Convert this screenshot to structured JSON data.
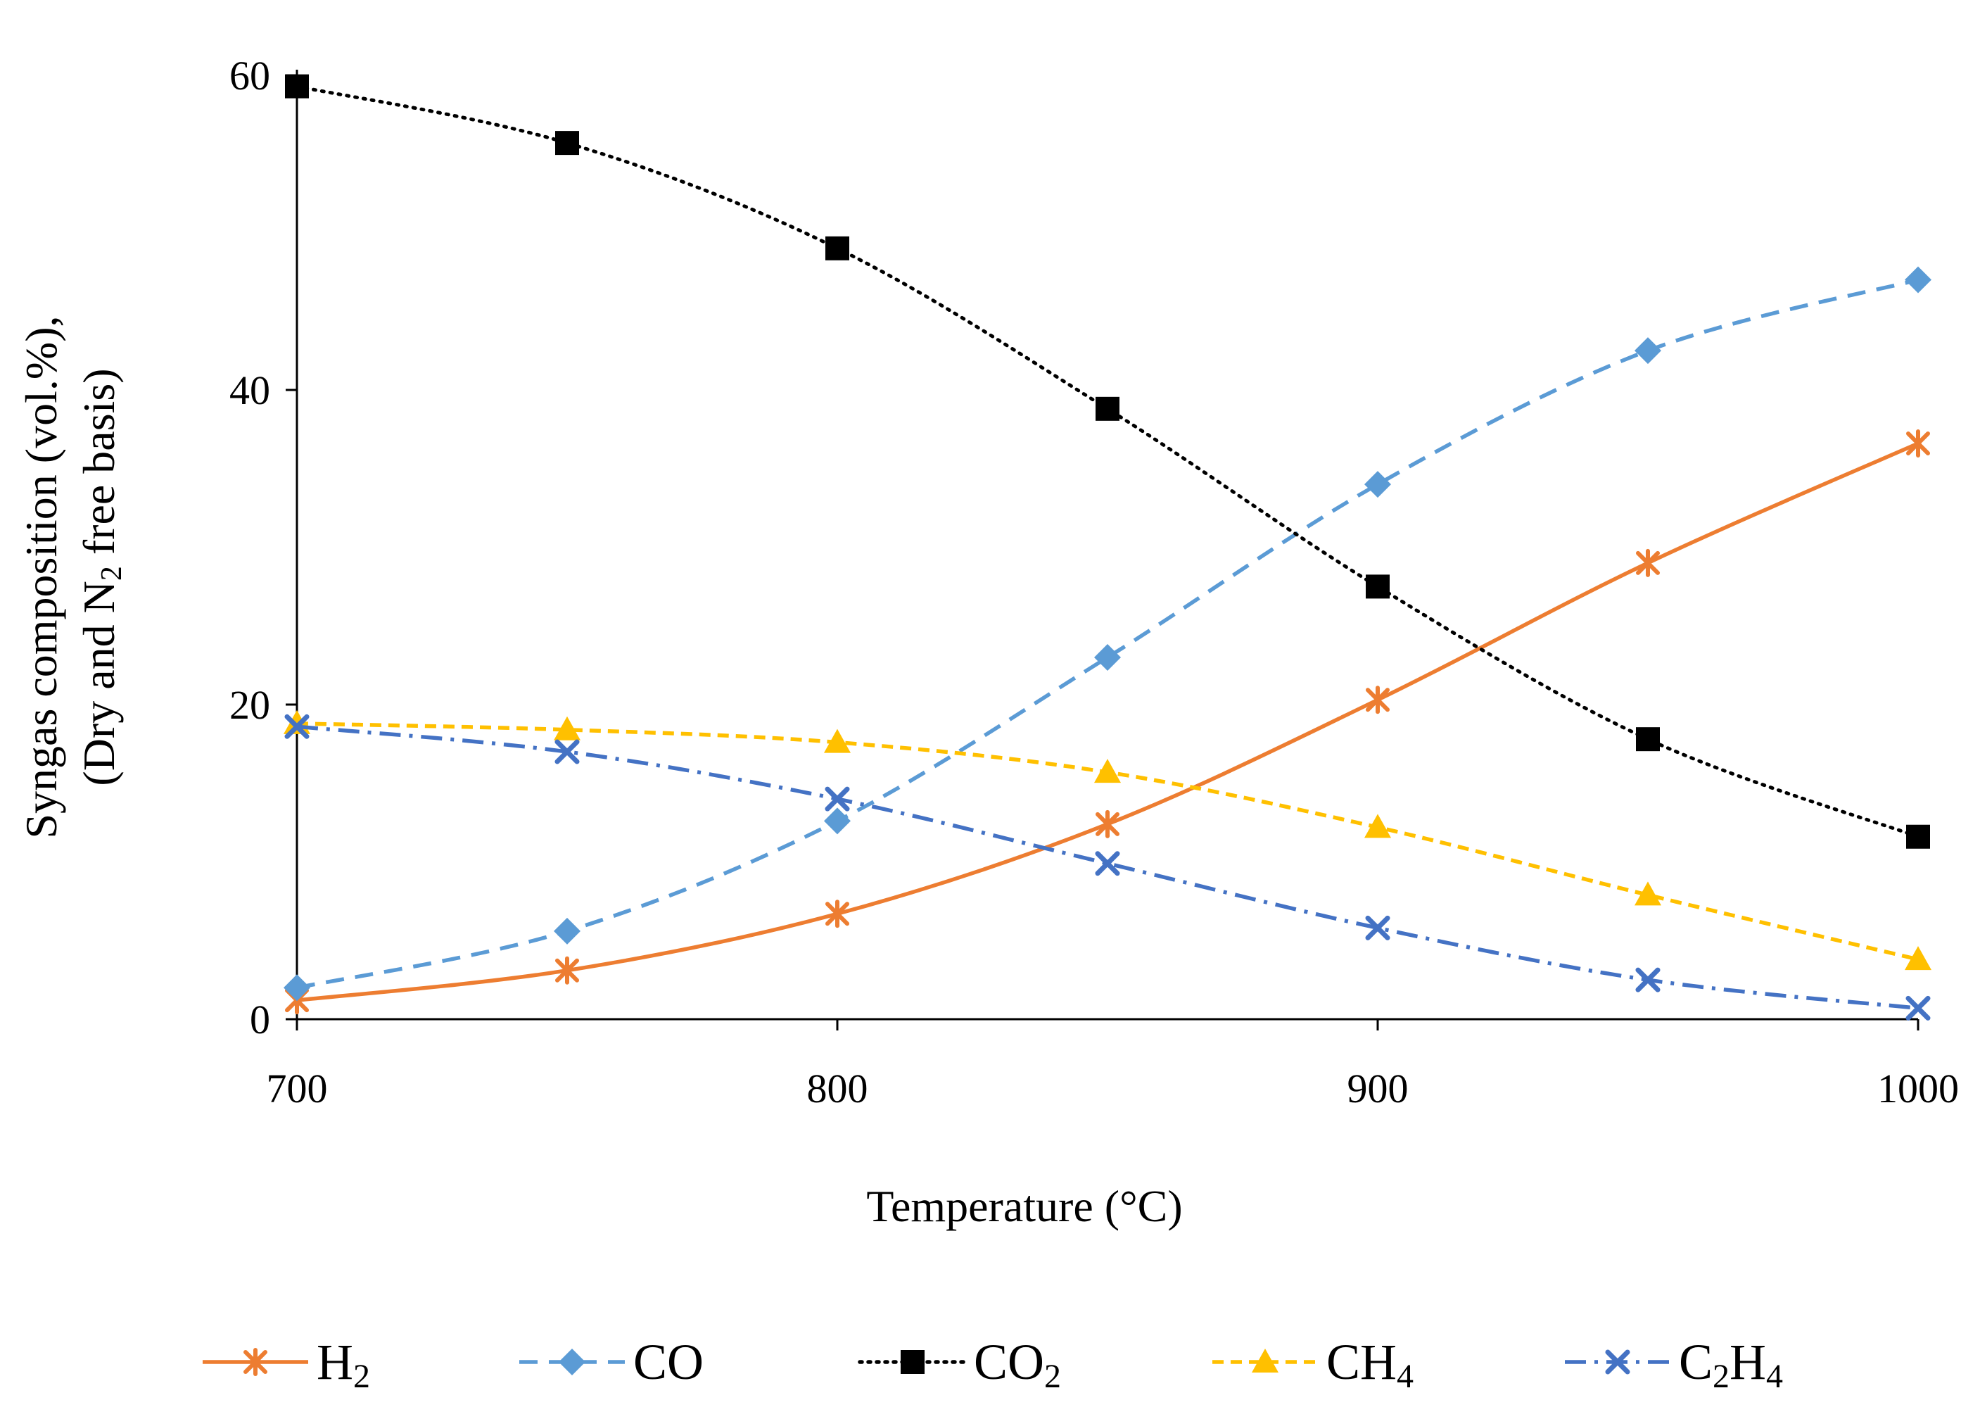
{
  "chart_data": {
    "type": "line",
    "title": "",
    "xlabel": "Temperature (°C)",
    "ylabel_line1": "Syngas composition (vol.%),",
    "ylabel_line2_prefix": "(Dry and N",
    "ylabel_line2_sub": "2",
    "ylabel_line2_suffix": " free basis)",
    "xlim": [
      700,
      1000
    ],
    "ylim": [
      0,
      60
    ],
    "xticks": [
      700,
      800,
      900,
      1000
    ],
    "yticks": [
      0,
      20,
      40,
      60
    ],
    "x": [
      700,
      750,
      800,
      850,
      900,
      950,
      1000
    ],
    "grid": false,
    "legend_position": "bottom",
    "series": [
      {
        "name": "H2",
        "label_main": "H",
        "label_sub": "2",
        "label_main2": "",
        "label_sub2": "",
        "color": "#ED7D31",
        "dash": "solid",
        "marker": "star",
        "values": [
          1.2,
          3.1,
          6.7,
          12.4,
          20.3,
          29.0,
          36.6
        ]
      },
      {
        "name": "CO",
        "label_main": "CO",
        "label_sub": "",
        "label_main2": "",
        "label_sub2": "",
        "color": "#5B9BD5",
        "dash": "dashed",
        "marker": "diamond",
        "values": [
          2.0,
          5.6,
          12.6,
          23.0,
          34.0,
          42.5,
          47.0
        ]
      },
      {
        "name": "CO2",
        "label_main": "CO",
        "label_sub": "2",
        "label_main2": "",
        "label_sub2": "",
        "color": "#000000",
        "dash": "dotted",
        "marker": "square",
        "values": [
          59.3,
          55.7,
          49.0,
          38.8,
          27.5,
          17.8,
          11.6
        ]
      },
      {
        "name": "CH4",
        "label_main": "CH",
        "label_sub": "4",
        "label_main2": "",
        "label_sub2": "",
        "color": "#FFC000",
        "dash": "shortdash",
        "marker": "triangle",
        "values": [
          18.8,
          18.4,
          17.6,
          15.7,
          12.2,
          7.9,
          3.8
        ]
      },
      {
        "name": "C2H4",
        "label_main": "C",
        "label_sub": "2",
        "label_main2": "H",
        "label_sub2": "4",
        "color": "#4472C4",
        "dash": "dashdot",
        "marker": "x",
        "values": [
          18.6,
          17.0,
          14.0,
          9.9,
          5.8,
          2.5,
          0.7
        ]
      }
    ]
  }
}
